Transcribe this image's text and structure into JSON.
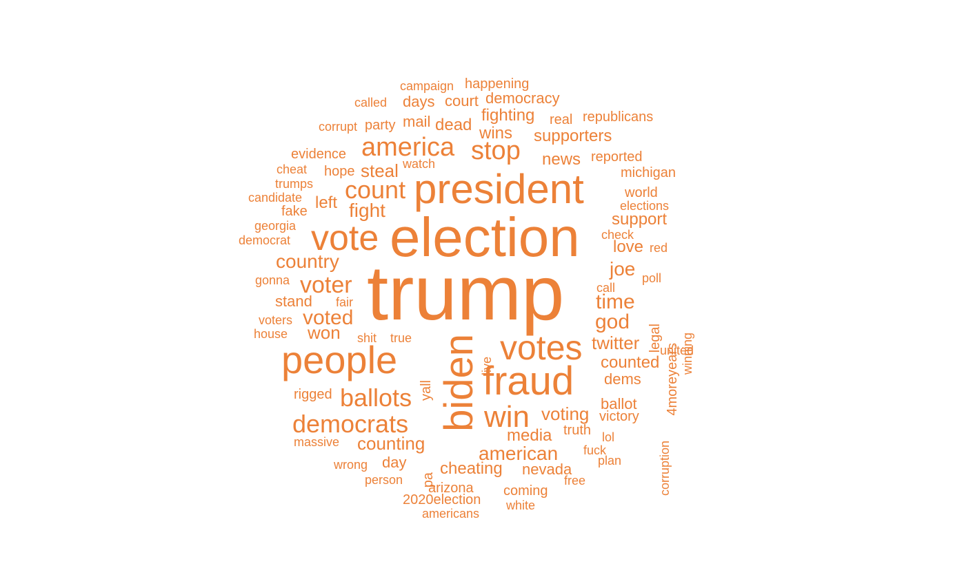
{
  "word_color": "#ec8138",
  "words": [
    {
      "text": "trump"
    },
    {
      "text": "election"
    },
    {
      "text": "president"
    },
    {
      "text": "biden"
    },
    {
      "text": "fraud"
    },
    {
      "text": "people"
    },
    {
      "text": "vote"
    },
    {
      "text": "votes"
    },
    {
      "text": "win"
    },
    {
      "text": "america"
    },
    {
      "text": "stop"
    },
    {
      "text": "count"
    },
    {
      "text": "democrats"
    },
    {
      "text": "ballots"
    },
    {
      "text": "voter"
    },
    {
      "text": "voted"
    },
    {
      "text": "american"
    },
    {
      "text": "country"
    },
    {
      "text": "god"
    },
    {
      "text": "time"
    },
    {
      "text": "joe"
    },
    {
      "text": "twitter"
    },
    {
      "text": "counted"
    },
    {
      "text": "counting"
    },
    {
      "text": "voting"
    },
    {
      "text": "media"
    },
    {
      "text": "cheating"
    },
    {
      "text": "won"
    },
    {
      "text": "fight"
    },
    {
      "text": "steal"
    },
    {
      "text": "supporters"
    },
    {
      "text": "news"
    },
    {
      "text": "support"
    },
    {
      "text": "wins"
    },
    {
      "text": "fighting"
    },
    {
      "text": "dead"
    },
    {
      "text": "democracy"
    },
    {
      "text": "court"
    },
    {
      "text": "days"
    },
    {
      "text": "mail"
    },
    {
      "text": "party"
    },
    {
      "text": "left"
    },
    {
      "text": "love"
    },
    {
      "text": "stand"
    },
    {
      "text": "dems"
    },
    {
      "text": "ballot"
    },
    {
      "text": "victory"
    },
    {
      "text": "truth"
    },
    {
      "text": "nevada"
    },
    {
      "text": "day"
    },
    {
      "text": "rigged"
    },
    {
      "text": "arizona"
    },
    {
      "text": "2020election"
    },
    {
      "text": "coming"
    },
    {
      "text": "legal"
    },
    {
      "text": "4moreyears"
    },
    {
      "text": "corruption"
    },
    {
      "text": "winning"
    },
    {
      "text": "evidence"
    },
    {
      "text": "reported"
    },
    {
      "text": "world"
    },
    {
      "text": "michigan"
    },
    {
      "text": "elections"
    },
    {
      "text": "republicans"
    },
    {
      "text": "real"
    },
    {
      "text": "happening"
    },
    {
      "text": "campaign"
    },
    {
      "text": "called"
    },
    {
      "text": "corrupt"
    },
    {
      "text": "hope"
    },
    {
      "text": "watch"
    },
    {
      "text": "cheat"
    },
    {
      "text": "trumps"
    },
    {
      "text": "candidate"
    },
    {
      "text": "fake"
    },
    {
      "text": "georgia"
    },
    {
      "text": "democrat"
    },
    {
      "text": "check"
    },
    {
      "text": "red"
    },
    {
      "text": "gonna"
    },
    {
      "text": "poll"
    },
    {
      "text": "call"
    },
    {
      "text": "fair"
    },
    {
      "text": "voters"
    },
    {
      "text": "house"
    },
    {
      "text": "shit"
    },
    {
      "text": "true"
    },
    {
      "text": "live"
    },
    {
      "text": "yall"
    },
    {
      "text": "united"
    },
    {
      "text": "massive"
    },
    {
      "text": "lol"
    },
    {
      "text": "fuck"
    },
    {
      "text": "plan"
    },
    {
      "text": "wrong"
    },
    {
      "text": "person"
    },
    {
      "text": "pa"
    },
    {
      "text": "free"
    },
    {
      "text": "americans"
    },
    {
      "text": "white"
    }
  ]
}
